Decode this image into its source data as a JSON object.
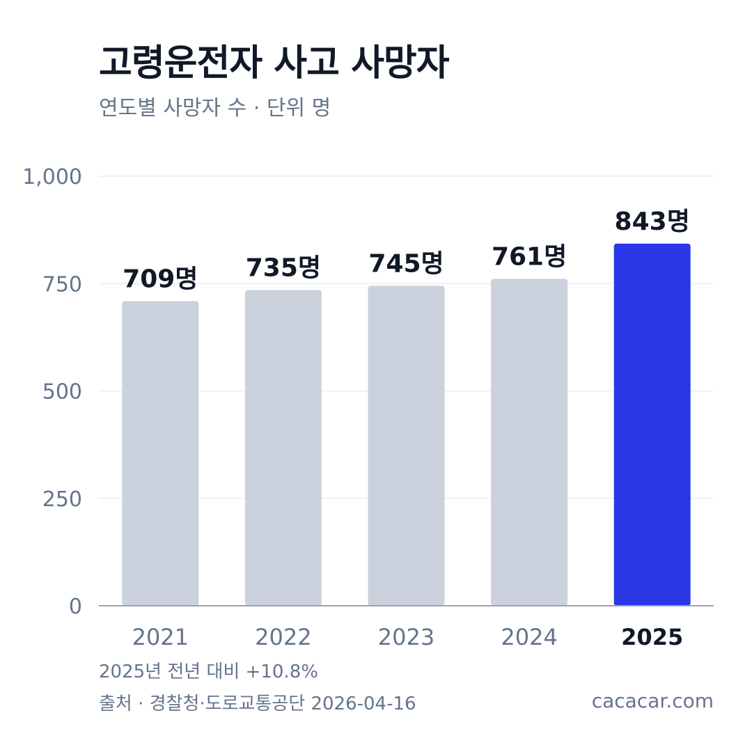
{
  "header": {
    "title": "고령운전자 사고 사망자",
    "subtitle": "연도별 사망자 수 · 단위 명"
  },
  "chart_data": {
    "type": "bar",
    "categories": [
      "2021",
      "2022",
      "2023",
      "2024",
      "2025"
    ],
    "values": [
      709,
      735,
      745,
      761,
      843
    ],
    "data_labels": [
      "709명",
      "735명",
      "745명",
      "761명",
      "843명"
    ],
    "highlight_category": "2025",
    "ylim": [
      0,
      1000
    ],
    "yticks": [
      0,
      250,
      500,
      750,
      1000
    ],
    "ytick_labels": [
      "0",
      "250",
      "500",
      "750",
      "1,000"
    ],
    "grid": true,
    "legend": "none"
  },
  "colors": {
    "bar": "#cbd2dd",
    "highlight": "#2b38e8",
    "grid": "#eef0f3",
    "axis": "#9aa3b0",
    "text_dark": "#111827",
    "text_muted": "#64748b"
  },
  "footer": {
    "note": "2025년 전년 대비 +10.8%",
    "source": "출처 · 경찰청·도로교통공단 2026-04-16",
    "brand": "cacacar.com"
  }
}
